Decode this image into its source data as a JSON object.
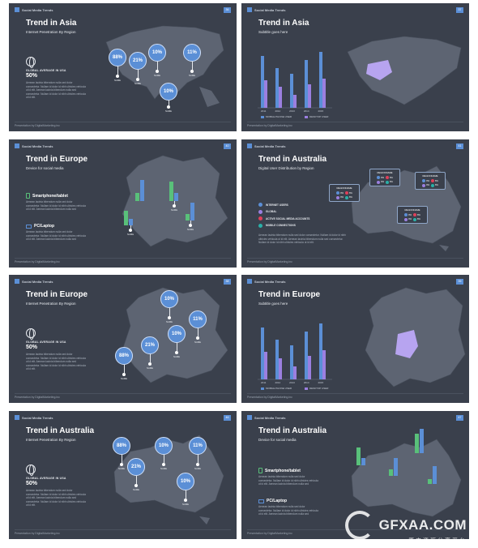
{
  "common": {
    "header": "Social Media Trends",
    "footer": "Presentation by DigitalMarketing.inc",
    "lorem": "Aenean lacinia bibendum nulla sed dolor consectetur. Nullam id dolor id nibh ultricies vehicula ut id elit. Aenean lacinia bibendum nulla sed consectetur. Nullam id dolor id nibh ultricies vehicula ut id elit.",
    "name_label": "NAME",
    "stat_label": "GLOBAL AVERAGE IN USA",
    "stat_value": "50%",
    "mobile_legend": "MOBILE PHONE USER",
    "desktop_legend": "DESKTOP USER",
    "smartphone": "Smartphone/tablet",
    "pc": "PC/Laptop",
    "years": [
      "2011",
      "2012",
      "2013",
      "2014",
      "2015"
    ]
  },
  "slides": [
    {
      "page": "36",
      "title": "Trend in Asia",
      "subtitle": "Internet Penetration By Region",
      "pins": [
        "88%",
        "21%",
        "10%",
        "11%",
        "10%"
      ]
    },
    {
      "page": "37",
      "title": "Trend in Asia",
      "subtitle": "Subtitle goes here"
    },
    {
      "page": "40",
      "title": "Trend in Europe",
      "subtitle": "Device for social media"
    },
    {
      "page": "41",
      "title": "Trend in Australia",
      "subtitle": "Digital User Distribution by Region",
      "legend": [
        "INTERNET USERS",
        "GLOBAL",
        "ACTIVE SOCIAL MEDIA ACCOUNTS",
        "MOBILE CONNECTIONS"
      ],
      "region": "REGIONNAME",
      "pct": "8%"
    },
    {
      "page": "38",
      "title": "Trend in Europe",
      "subtitle": "Internet Penetration By Region",
      "pins": [
        "10%",
        "11%",
        "10%",
        "21%",
        "88%"
      ]
    },
    {
      "page": "39",
      "title": "Trend in Europe",
      "subtitle": "Subtitle goes here"
    },
    {
      "page": "46",
      "title": "Trend in Australia",
      "subtitle": "Internet Penetration By Region",
      "pins": [
        "88%",
        "10%",
        "11%",
        "21%",
        "10%"
      ]
    },
    {
      "page": "47",
      "title": "Trend in Australia",
      "subtitle": "Device for social media"
    }
  ],
  "bar_values": [
    "65",
    "15",
    "30",
    "10"
  ],
  "colors": {
    "bg": "#3a404c",
    "blue": "#5b8fd6",
    "purple": "#9b7fe0",
    "green": "#59c07a",
    "red": "#e0405a",
    "teal": "#2ab0a8"
  },
  "watermark": {
    "main": "GFXAA.COM",
    "sub": "原来资源分享平台"
  }
}
